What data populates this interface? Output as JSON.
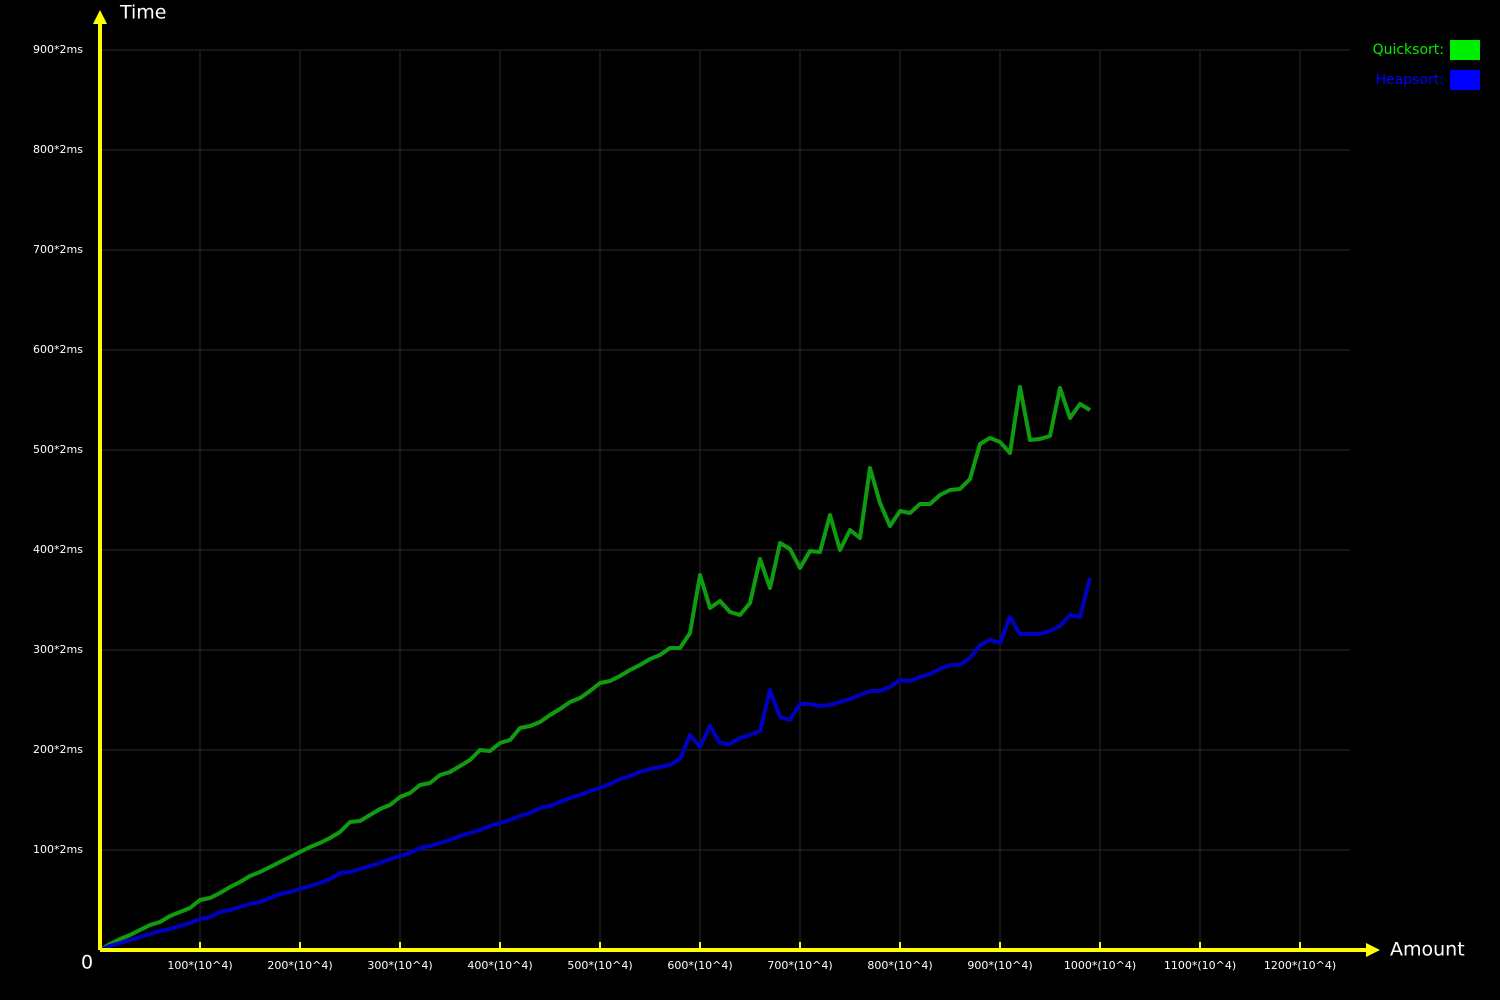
{
  "chart_data": {
    "type": "line",
    "y_axis_label": "Time",
    "x_axis_label": "Amount",
    "origin_label": "0",
    "grid": true,
    "legend_position": "top-right",
    "xlim": [
      0,
      1250
    ],
    "ylim": [
      0,
      900
    ],
    "xticks": [
      {
        "value": 100,
        "label": "100*(10^4)"
      },
      {
        "value": 200,
        "label": "200*(10^4)"
      },
      {
        "value": 300,
        "label": "300*(10^4)"
      },
      {
        "value": 400,
        "label": "400*(10^4)"
      },
      {
        "value": 500,
        "label": "500*(10^4)"
      },
      {
        "value": 600,
        "label": "600*(10^4)"
      },
      {
        "value": 700,
        "label": "700*(10^4)"
      },
      {
        "value": 800,
        "label": "800*(10^4)"
      },
      {
        "value": 900,
        "label": "900*(10^4)"
      },
      {
        "value": 1000,
        "label": "1000*(10^4)"
      },
      {
        "value": 1100,
        "label": "1100*(10^4)"
      },
      {
        "value": 1200,
        "label": "1200*(10^4)"
      }
    ],
    "yticks": [
      {
        "value": 100,
        "label": "100*2ms"
      },
      {
        "value": 200,
        "label": "200*2ms"
      },
      {
        "value": 300,
        "label": "300*2ms"
      },
      {
        "value": 400,
        "label": "400*2ms"
      },
      {
        "value": 500,
        "label": "500*2ms"
      },
      {
        "value": 600,
        "label": "600*2ms"
      },
      {
        "value": 700,
        "label": "700*2ms"
      },
      {
        "value": 800,
        "label": "800*2ms"
      },
      {
        "value": 900,
        "label": "900*2ms"
      }
    ],
    "x": [
      0,
      10,
      20,
      30,
      40,
      50,
      60,
      70,
      80,
      90,
      100,
      110,
      120,
      130,
      140,
      150,
      160,
      170,
      180,
      190,
      200,
      210,
      220,
      230,
      240,
      250,
      260,
      270,
      280,
      290,
      300,
      310,
      320,
      330,
      340,
      350,
      360,
      370,
      380,
      390,
      400,
      410,
      420,
      430,
      440,
      450,
      460,
      470,
      480,
      490,
      500,
      510,
      520,
      530,
      540,
      550,
      560,
      570,
      580,
      590,
      600,
      610,
      620,
      630,
      640,
      650,
      660,
      670,
      680,
      690,
      700,
      710,
      720,
      730,
      740,
      750,
      760,
      770,
      780,
      790,
      800,
      810,
      820,
      830,
      840,
      850,
      860,
      870,
      880,
      890,
      900,
      910,
      920,
      930,
      940,
      950,
      960,
      970,
      980,
      990
    ],
    "series": [
      {
        "name": "Quicksort:",
        "color": "#109c10",
        "legend_color": "#00ee00",
        "values": [
          0,
          6,
          11,
          15,
          20,
          25,
          28,
          34,
          38,
          42,
          50,
          52,
          57,
          63,
          68,
          74,
          78,
          83,
          88,
          93,
          98,
          103,
          107,
          112,
          118,
          128,
          129,
          135,
          141,
          145,
          153,
          157,
          165,
          167,
          175,
          178,
          184,
          190,
          200,
          199,
          207,
          210,
          222,
          224,
          228,
          235,
          241,
          248,
          252,
          259,
          267,
          269,
          274,
          280,
          285,
          291,
          295,
          302,
          302,
          317,
          375,
          342,
          349,
          338,
          335,
          347,
          391,
          362,
          407,
          401,
          382,
          399,
          398,
          435,
          400,
          420,
          412,
          482,
          447,
          424,
          439,
          437,
          446,
          446,
          455,
          460,
          461,
          471,
          506,
          512,
          508,
          497,
          563,
          510,
          511,
          514,
          562,
          532,
          546,
          540
        ]
      },
      {
        "name": "Heapsort:",
        "color": "#0000c0",
        "legend_color": "#0000ff",
        "values": [
          0,
          4,
          7,
          10,
          13,
          16,
          19,
          21,
          24,
          27,
          31,
          33,
          38,
          40,
          43,
          46,
          48,
          52,
          56,
          58,
          61,
          64,
          67,
          71,
          77,
          78,
          81,
          84,
          87,
          91,
          94,
          97,
          102,
          104,
          107,
          110,
          114,
          117,
          120,
          124,
          127,
          130,
          134,
          137,
          142,
          144,
          148,
          152,
          155,
          159,
          162,
          166,
          171,
          174,
          178,
          181,
          183,
          185,
          191,
          215,
          203,
          224,
          207,
          206,
          212,
          215,
          219,
          260,
          233,
          230,
          246,
          246,
          244,
          245,
          248,
          251,
          255,
          259,
          259,
          263,
          270,
          269,
          273,
          276,
          281,
          285,
          285,
          292,
          305,
          310,
          307,
          333,
          316,
          316,
          316,
          319,
          324,
          335,
          333,
          372
        ]
      }
    ]
  }
}
